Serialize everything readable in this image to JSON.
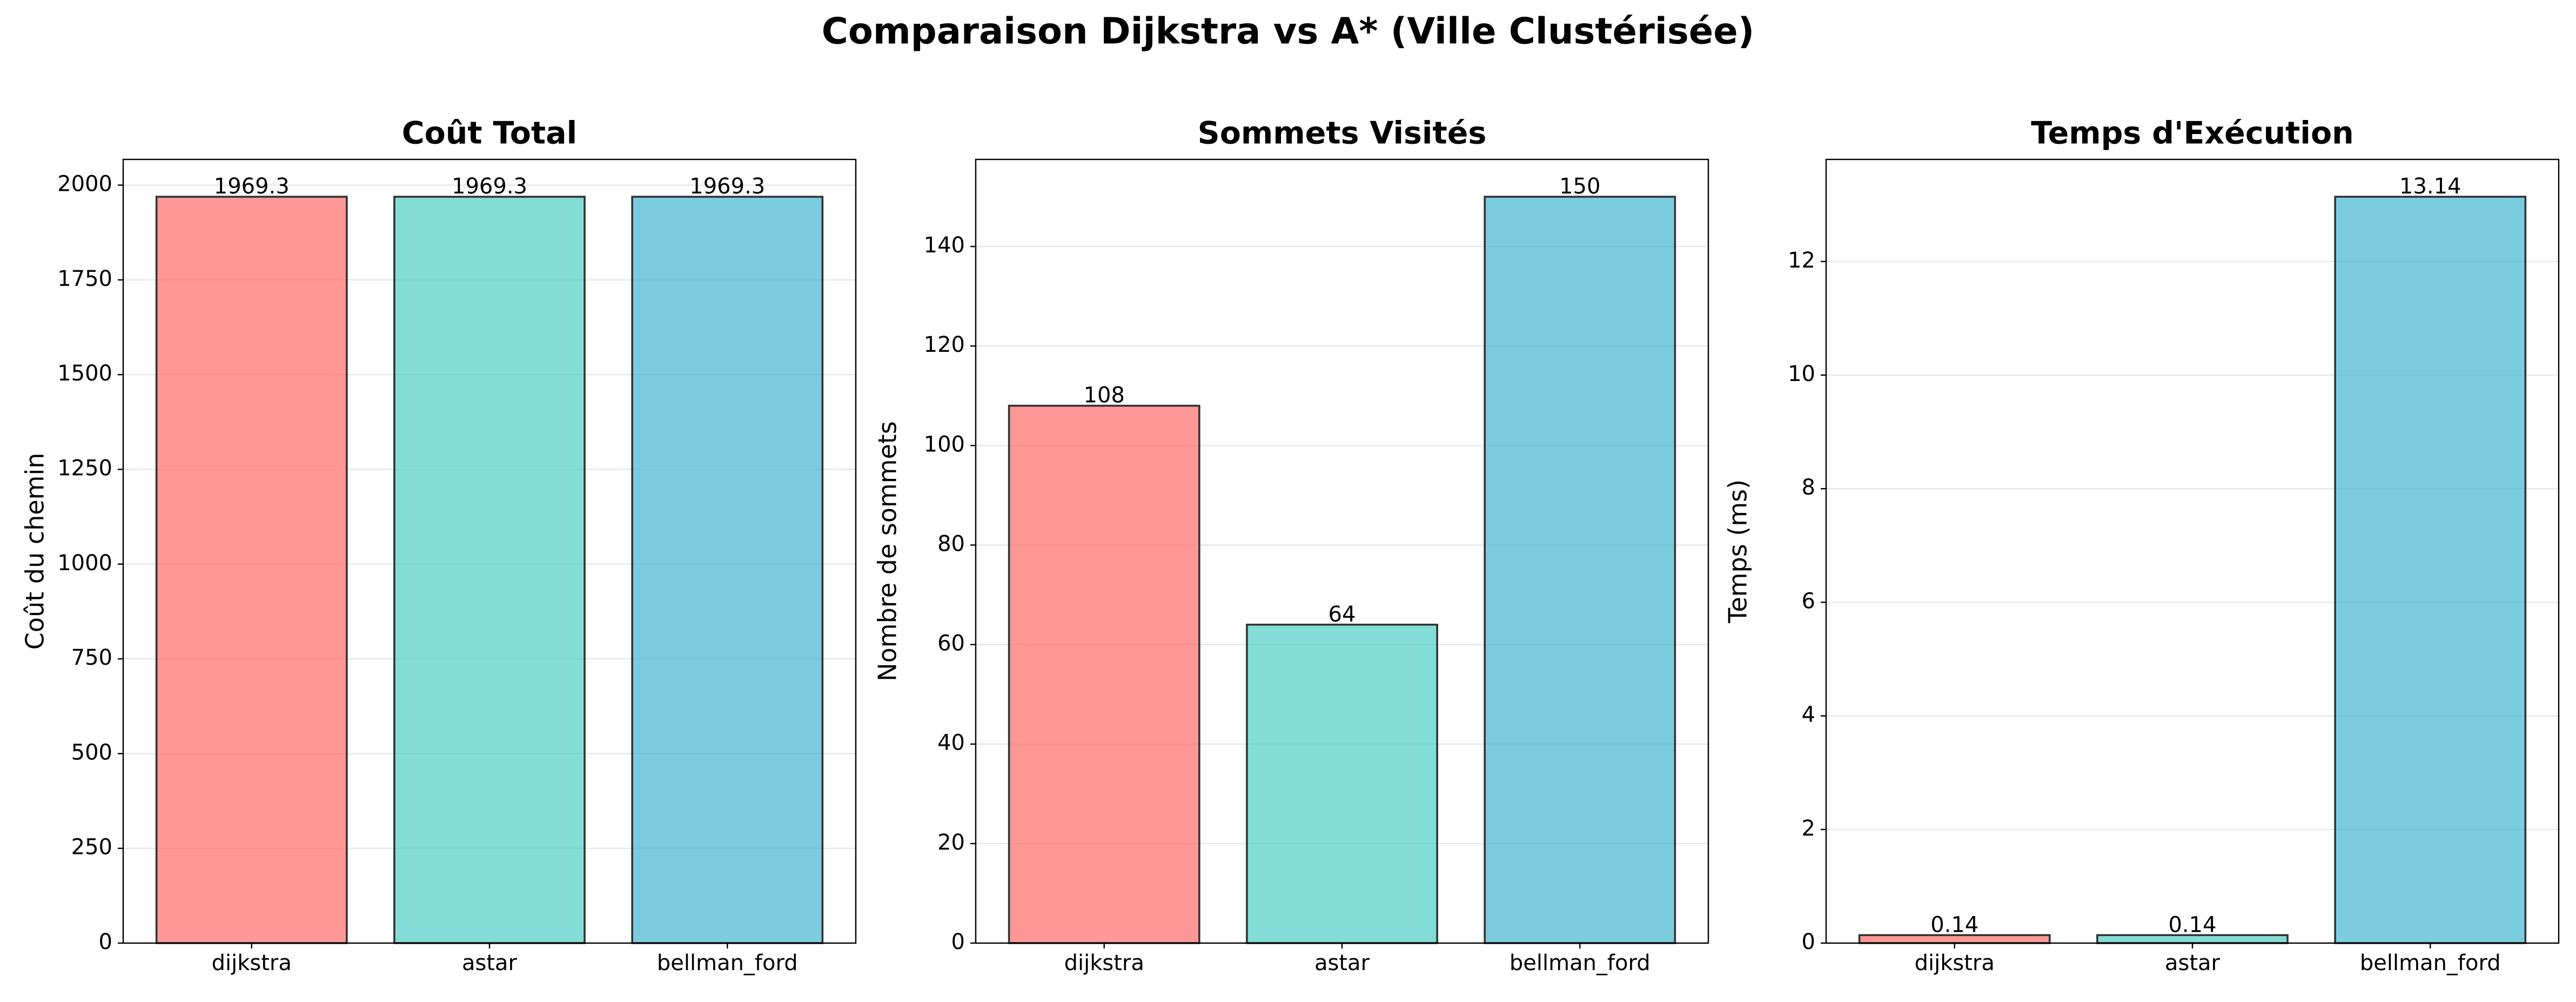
{
  "title": "Comparaison Dijkstra vs A* (Ville Clustérisée)",
  "chart_data": [
    {
      "type": "bar",
      "title": "Coût Total",
      "ylabel": "Coût du chemin",
      "categories": [
        "dijkstra",
        "astar",
        "bellman_ford"
      ],
      "values": [
        1969.3,
        1969.3,
        1969.3
      ],
      "colors": [
        "#ff6b6b",
        "#4ecdc4",
        "#45b7d1"
      ],
      "ylim": [
        0,
        2067.8
      ],
      "yticks": [
        0,
        250,
        500,
        750,
        1000,
        1250,
        1500,
        1750,
        2000
      ],
      "grid": true
    },
    {
      "type": "bar",
      "title": "Sommets Visités",
      "ylabel": "Nombre de sommets",
      "categories": [
        "dijkstra",
        "astar",
        "bellman_ford"
      ],
      "values": [
        108,
        64,
        150
      ],
      "colors": [
        "#ff6b6b",
        "#4ecdc4",
        "#45b7d1"
      ],
      "ylim": [
        0,
        157.5
      ],
      "yticks": [
        0,
        20,
        40,
        60,
        80,
        100,
        120,
        140
      ],
      "grid": true
    },
    {
      "type": "bar",
      "title": "Temps d'Exécution",
      "ylabel": "Temps (ms)",
      "categories": [
        "dijkstra",
        "astar",
        "bellman_ford"
      ],
      "values": [
        0.14,
        0.14,
        13.14
      ],
      "colors": [
        "#ff6b6b",
        "#4ecdc4",
        "#45b7d1"
      ],
      "ylim": [
        0,
        13.797
      ],
      "yticks": [
        0,
        2,
        4,
        6,
        8,
        10,
        12
      ],
      "grid": true
    }
  ]
}
